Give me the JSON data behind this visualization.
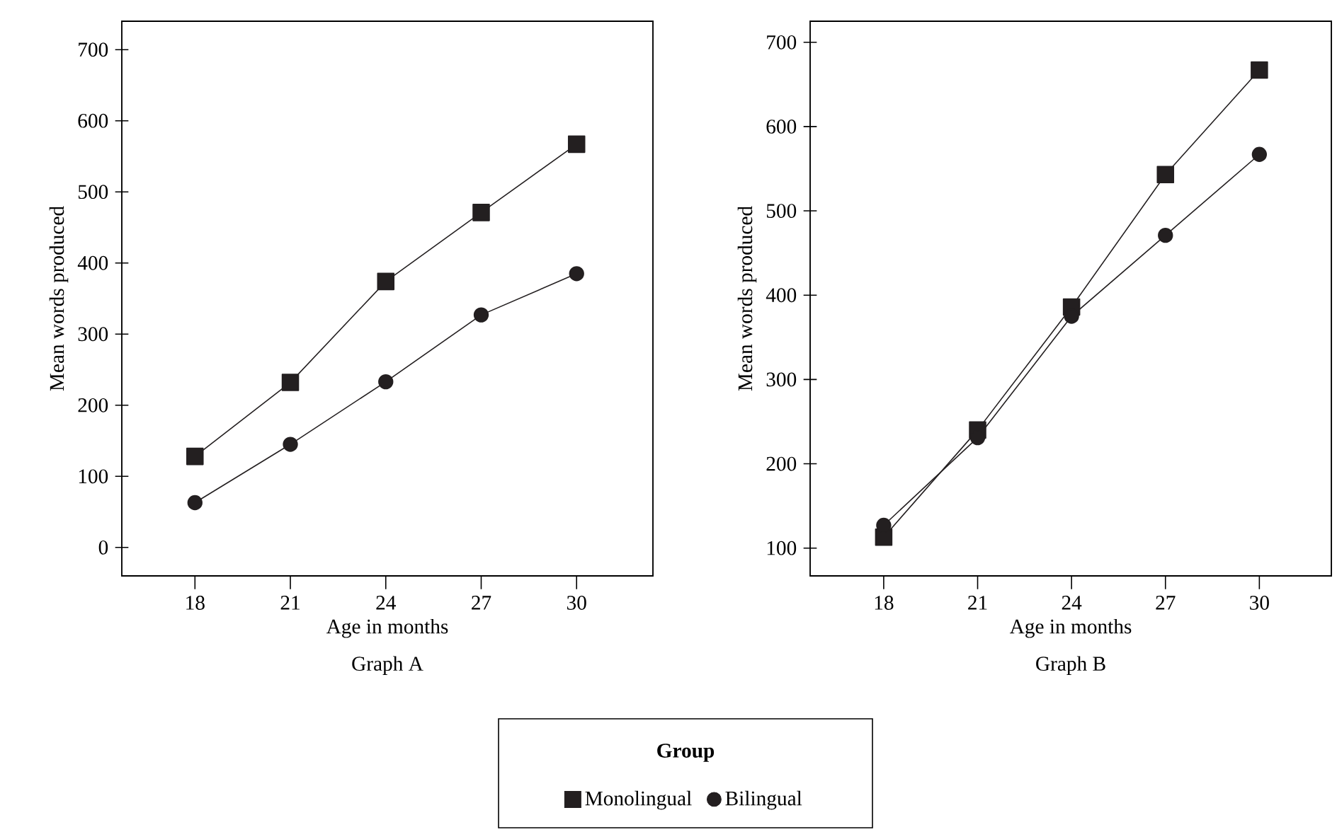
{
  "chart_data": [
    {
      "type": "line",
      "title": "Graph A",
      "xlabel": "Age in months",
      "ylabel": "Mean words produced",
      "legend_title": "Group",
      "legend": "bottom",
      "x": [
        18,
        21,
        24,
        27,
        30
      ],
      "xlim": [
        15.7,
        32.4
      ],
      "xticks": [
        18,
        21,
        24,
        27,
        30
      ],
      "ylim": [
        -40,
        740
      ],
      "yticks": [
        0,
        100,
        200,
        300,
        400,
        500,
        600,
        700
      ],
      "line_style": "solid",
      "series": [
        {
          "name": "Monolingual",
          "color": "#231f20",
          "marker": "square",
          "values": [
            128,
            232,
            374,
            471,
            567
          ]
        },
        {
          "name": "Bilingual",
          "color": "#231f20",
          "marker": "circle",
          "values": [
            63,
            145,
            233,
            327,
            385
          ]
        }
      ]
    },
    {
      "type": "line",
      "title": "Graph B",
      "xlabel": "Age in months",
      "ylabel": "Mean words produced",
      "x": [
        18,
        21,
        24,
        27,
        30
      ],
      "xlim": [
        15.65,
        32.3
      ],
      "xticks": [
        18,
        21,
        24,
        27,
        30
      ],
      "ylim": [
        67,
        725
      ],
      "yticks": [
        100,
        200,
        300,
        400,
        500,
        600,
        700
      ],
      "line_style": "solid",
      "series": [
        {
          "color": "#231f20",
          "marker": "square",
          "values": [
            113,
            240,
            386,
            543,
            667
          ]
        },
        {
          "color": "#231f20",
          "marker": "circle",
          "values": [
            127,
            231,
            375,
            471,
            567
          ]
        }
      ]
    }
  ]
}
